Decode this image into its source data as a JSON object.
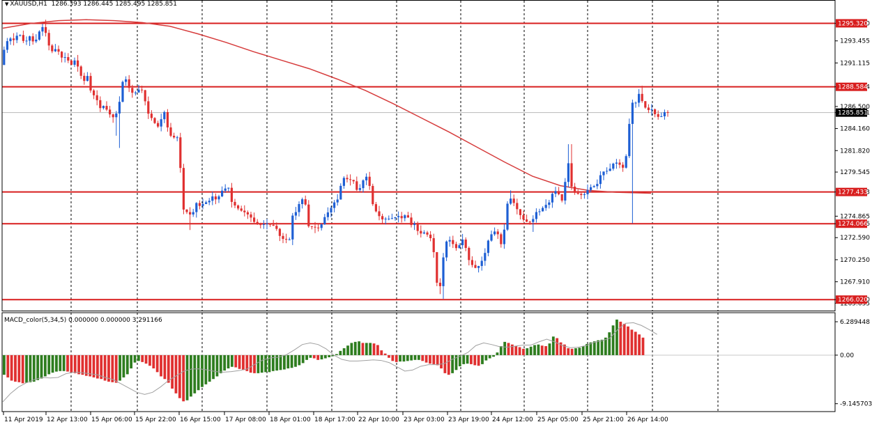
{
  "header": {
    "symbol": "XAUUSD,H1",
    "ohlc": "1286.393 1286.445 1285.495 1285.851"
  },
  "macd": {
    "label": "MACD_color(5,34,5) 0.000000 0.000000 3.291166"
  },
  "colors": {
    "up": "#1e5fd4",
    "down": "#e03030",
    "ma": "#d63c3c",
    "level": "#d81e1e",
    "hist_pos": "#2e7d1f",
    "hist_neg": "#e03030",
    "signal": "#a0a0a0",
    "grid": "#000000"
  },
  "chart_data": [
    {
      "type": "candlestick",
      "title": "XAUUSD,H1",
      "ylim": [
        1265.0,
        1297.2
      ],
      "y_ticks": [
        "1295.320",
        "1293.455",
        "1291.115",
        "1288.584",
        "1286.500",
        "1285.851",
        "1284.160",
        "1281.820",
        "1279.545",
        "1277.433",
        "1274.865",
        "1274.066",
        "1272.590",
        "1270.250",
        "1267.910",
        "1266.020",
        "1265.635"
      ],
      "x_ticks": [
        "11 Apr 2019",
        "12 Apr 13:00",
        "15 Apr 06:00",
        "15 Apr 22:00",
        "16 Apr 15:00",
        "17 Apr 08:00",
        "18 Apr 01:00",
        "18 Apr 17:00",
        "22 Apr 10:00",
        "23 Apr 03:00",
        "23 Apr 19:00",
        "24 Apr 12:00",
        "25 Apr 05:00",
        "25 Apr 21:00",
        "26 Apr 14:00"
      ],
      "horizontal_levels": [
        {
          "price": 1295.32,
          "label": "1295.320"
        },
        {
          "price": 1288.584,
          "label": "1288.584"
        },
        {
          "price": 1277.433,
          "label": "1277.433"
        },
        {
          "price": 1274.066,
          "label": "1274.066"
        },
        {
          "price": 1266.02,
          "label": "1266.020"
        }
      ],
      "current_price": {
        "price": 1285.851,
        "label": "1285.851"
      },
      "price_path": [
        [
          0,
          1290.9
        ],
        [
          6,
          1293.0
        ],
        [
          12,
          1293.8
        ],
        [
          18,
          1293.5
        ],
        [
          26,
          1294.3
        ],
        [
          34,
          1293.2
        ],
        [
          42,
          1294.0
        ],
        [
          48,
          1293.1
        ],
        [
          56,
          1294.6
        ],
        [
          62,
          1295.1
        ],
        [
          68,
          1293.1
        ],
        [
          74,
          1292.3
        ],
        [
          80,
          1292.7
        ],
        [
          88,
          1291.6
        ],
        [
          94,
          1291.8
        ],
        [
          100,
          1290.8
        ],
        [
          106,
          1291.4
        ],
        [
          112,
          1290.5
        ],
        [
          118,
          1289.0
        ],
        [
          124,
          1289.8
        ],
        [
          130,
          1287.8
        ],
        [
          136,
          1287.6
        ],
        [
          142,
          1286.3
        ],
        [
          148,
          1286.6
        ],
        [
          155,
          1285.8
        ],
        [
          160,
          1285.3
        ],
        [
          165,
          1285.6
        ],
        [
          170,
          1286.9
        ],
        [
          175,
          1289.2
        ],
        [
          180,
          1289.4
        ],
        [
          186,
          1288.0
        ],
        [
          192,
          1287.9
        ],
        [
          198,
          1288.3
        ],
        [
          204,
          1288.2
        ],
        [
          210,
          1285.9
        ],
        [
          216,
          1285.3
        ],
        [
          222,
          1284.6
        ],
        [
          228,
          1284.2
        ],
        [
          232,
          1286.1
        ],
        [
          236,
          1285.8
        ],
        [
          240,
          1283.9
        ],
        [
          246,
          1283.1
        ],
        [
          252,
          1283.4
        ],
        [
          256,
          1282.7
        ],
        [
          260,
          1275.9
        ],
        [
          264,
          1275.3
        ],
        [
          268,
          1275.3
        ],
        [
          272,
          1275.0
        ],
        [
          276,
          1275.3
        ],
        [
          280,
          1276.3
        ],
        [
          286,
          1275.9
        ],
        [
          292,
          1276.3
        ],
        [
          298,
          1276.4
        ],
        [
          304,
          1277.0
        ],
        [
          310,
          1276.5
        ],
        [
          316,
          1277.5
        ],
        [
          322,
          1277.8
        ],
        [
          328,
          1277.9
        ],
        [
          332,
          1276.0
        ],
        [
          336,
          1276.0
        ],
        [
          340,
          1275.7
        ],
        [
          346,
          1275.4
        ],
        [
          352,
          1275.2
        ],
        [
          358,
          1274.8
        ],
        [
          364,
          1274.2
        ],
        [
          370,
          1273.9
        ],
        [
          376,
          1274.0
        ],
        [
          382,
          1274.1
        ],
        [
          388,
          1273.9
        ],
        [
          394,
          1273.8
        ],
        [
          398,
          1273.1
        ],
        [
          402,
          1272.5
        ],
        [
          408,
          1272.4
        ],
        [
          414,
          1272.4
        ],
        [
          420,
          1275.7
        ],
        [
          424,
          1275.2
        ],
        [
          430,
          1276.7
        ],
        [
          436,
          1276.6
        ],
        [
          442,
          1273.6
        ],
        [
          448,
          1273.8
        ],
        [
          454,
          1273.5
        ],
        [
          460,
          1274.0
        ],
        [
          466,
          1275.0
        ],
        [
          472,
          1275.5
        ],
        [
          478,
          1276.3
        ],
        [
          484,
          1276.7
        ],
        [
          490,
          1279.0
        ],
        [
          496,
          1278.8
        ],
        [
          502,
          1278.7
        ],
        [
          508,
          1278.5
        ],
        [
          512,
          1277.2
        ],
        [
          516,
          1278.0
        ],
        [
          520,
          1278.7
        ],
        [
          524,
          1279.1
        ],
        [
          528,
          1278.6
        ],
        [
          532,
          1276.5
        ],
        [
          536,
          1275.6
        ],
        [
          540,
          1275.2
        ],
        [
          546,
          1274.5
        ],
        [
          552,
          1274.6
        ],
        [
          558,
          1274.6
        ],
        [
          564,
          1274.7
        ],
        [
          570,
          1274.9
        ],
        [
          576,
          1274.6
        ],
        [
          582,
          1275.2
        ],
        [
          588,
          1273.9
        ],
        [
          594,
          1274.1
        ],
        [
          600,
          1272.9
        ],
        [
          606,
          1273.2
        ],
        [
          612,
          1272.9
        ],
        [
          618,
          1272.4
        ],
        [
          622,
          1270.6
        ],
        [
          626,
          1267.5
        ],
        [
          630,
          1267.3
        ],
        [
          634,
          1270.2
        ],
        [
          640,
          1272.4
        ],
        [
          646,
          1272.3
        ],
        [
          652,
          1271.4
        ],
        [
          658,
          1271.8
        ],
        [
          664,
          1272.6
        ],
        [
          670,
          1270.4
        ],
        [
          676,
          1269.7
        ],
        [
          682,
          1269.3
        ],
        [
          688,
          1269.8
        ],
        [
          694,
          1270.8
        ],
        [
          700,
          1272.5
        ],
        [
          706,
          1273.2
        ],
        [
          712,
          1273.3
        ],
        [
          716,
          1271.9
        ],
        [
          720,
          1271.9
        ],
        [
          726,
          1276.1
        ],
        [
          732,
          1276.8
        ],
        [
          738,
          1276.0
        ],
        [
          744,
          1275.1
        ],
        [
          750,
          1274.5
        ],
        [
          756,
          1274.2
        ],
        [
          762,
          1274.3
        ],
        [
          768,
          1275.3
        ],
        [
          774,
          1275.4
        ],
        [
          780,
          1276.0
        ],
        [
          786,
          1276.2
        ],
        [
          792,
          1277.4
        ],
        [
          798,
          1277.6
        ],
        [
          804,
          1276.6
        ],
        [
          808,
          1276.3
        ],
        [
          812,
          1281.8
        ],
        [
          816,
          1279.4
        ],
        [
          820,
          1277.4
        ],
        [
          826,
          1277.3
        ],
        [
          832,
          1277.1
        ],
        [
          838,
          1277.2
        ],
        [
          844,
          1277.9
        ],
        [
          850,
          1278.0
        ],
        [
          856,
          1278.3
        ],
        [
          862,
          1279.6
        ],
        [
          868,
          1279.6
        ],
        [
          874,
          1279.9
        ],
        [
          880,
          1280.6
        ],
        [
          886,
          1280.5
        ],
        [
          892,
          1279.9
        ],
        [
          898,
          1281.5
        ],
        [
          902,
          1285.0
        ],
        [
          906,
          1286.9
        ],
        [
          912,
          1286.9
        ],
        [
          916,
          1288.0
        ],
        [
          922,
          1286.6
        ],
        [
          928,
          1286.1
        ],
        [
          934,
          1286.2
        ],
        [
          940,
          1285.5
        ],
        [
          946,
          1285.3
        ],
        [
          952,
          1285.9
        ],
        [
          956,
          1285.85
        ]
      ],
      "lows": [
        [
          160,
          1283.4
        ],
        [
          166,
          1282.1
        ],
        [
          268,
          1273.4
        ],
        [
          414,
          1271.8
        ],
        [
          626,
          1266.6
        ],
        [
          632,
          1266.1
        ],
        [
          680,
          1268.9
        ],
        [
          760,
          1273.2
        ],
        [
          900,
          1274.1
        ]
      ],
      "highs": [
        [
          62,
          1295.7
        ],
        [
          180,
          1289.7
        ],
        [
          328,
          1278.1
        ],
        [
          498,
          1279.3
        ],
        [
          526,
          1279.4
        ],
        [
          726,
          1277.6
        ],
        [
          812,
          1282.5
        ],
        [
          916,
          1288.7
        ]
      ],
      "moving_average": [
        [
          0,
          1294.8
        ],
        [
          40,
          1295.3
        ],
        [
          80,
          1295.6
        ],
        [
          120,
          1295.7
        ],
        [
          160,
          1295.6
        ],
        [
          200,
          1295.4
        ],
        [
          240,
          1295.0
        ],
        [
          280,
          1294.2
        ],
        [
          320,
          1293.3
        ],
        [
          360,
          1292.3
        ],
        [
          400,
          1291.4
        ],
        [
          440,
          1290.5
        ],
        [
          480,
          1289.4
        ],
        [
          520,
          1288.2
        ],
        [
          560,
          1286.8
        ],
        [
          600,
          1285.3
        ],
        [
          640,
          1283.8
        ],
        [
          680,
          1282.2
        ],
        [
          720,
          1280.6
        ],
        [
          760,
          1279.1
        ],
        [
          800,
          1278.1
        ],
        [
          840,
          1277.6
        ],
        [
          880,
          1277.4
        ],
        [
          930,
          1277.3
        ]
      ]
    },
    {
      "type": "histogram",
      "title": "MACD_color(5,34,5) 0.000000 0.000000 3.291166",
      "ylim": [
        -10.5,
        7.6
      ],
      "y_ticks": [
        "6.289448",
        "0.00",
        "-9.145703"
      ],
      "values": [
        -3.7,
        -4.2,
        -4.8,
        -5.0,
        -5.1,
        -5.3,
        -5.2,
        -5.1,
        -5.0,
        -4.7,
        -4.4,
        -4.0,
        -3.6,
        -3.3,
        -3.1,
        -3.0,
        -3.0,
        -3.1,
        -3.3,
        -3.4,
        -3.6,
        -3.7,
        -3.9,
        -4.0,
        -4.2,
        -4.4,
        -4.5,
        -4.8,
        -5.0,
        -5.1,
        -5.2,
        -4.8,
        -4.2,
        -3.6,
        -2.5,
        -1.4,
        -1.1,
        -1.3,
        -1.6,
        -2.0,
        -2.5,
        -3.2,
        -4.0,
        -4.5,
        -5.2,
        -6.3,
        -7.2,
        -8.1,
        -8.7,
        -8.5,
        -7.8,
        -7.2,
        -6.6,
        -6.0,
        -5.5,
        -5.0,
        -4.5,
        -4.0,
        -3.4,
        -2.9,
        -2.5,
        -2.2,
        -2.3,
        -2.6,
        -2.8,
        -3.0,
        -3.3,
        -3.4,
        -3.4,
        -3.3,
        -3.2,
        -3.2,
        -3.0,
        -2.9,
        -2.8,
        -2.7,
        -2.5,
        -2.4,
        -2.2,
        -1.9,
        -1.5,
        -0.9,
        -0.5,
        -0.6,
        -0.9,
        -0.8,
        -0.6,
        -0.4,
        -0.2,
        0.2,
        0.8,
        1.3,
        1.8,
        2.3,
        2.5,
        2.6,
        2.3,
        2.3,
        2.3,
        2.2,
        1.9,
        0.9,
        0.3,
        -0.5,
        -1.1,
        -1.3,
        -1.2,
        -1.2,
        -1.1,
        -1.0,
        -0.9,
        -0.9,
        -1.1,
        -1.4,
        -1.6,
        -1.7,
        -1.9,
        -2.5,
        -3.4,
        -3.7,
        -3.4,
        -2.8,
        -2.1,
        -1.7,
        -1.6,
        -1.7,
        -1.9,
        -2.0,
        -1.7,
        -1.0,
        -0.6,
        -0.3,
        0.5,
        1.7,
        2.5,
        2.3,
        2.0,
        1.7,
        1.5,
        1.2,
        1.3,
        1.6,
        1.9,
        2.0,
        1.8,
        1.7,
        2.2,
        3.5,
        3.2,
        2.4,
        2.0,
        1.3,
        1.2,
        1.3,
        1.4,
        1.7,
        2.1,
        2.4,
        2.6,
        2.8,
        2.9,
        3.3,
        4.3,
        5.6,
        6.7,
        6.3,
        5.9,
        5.4,
        4.8,
        4.4,
        3.9,
        3.3
      ],
      "signal": [
        -8.8,
        -7.2,
        -6.0,
        -5.2,
        -4.6,
        -4.2,
        -4.3,
        -4.2,
        -3.5,
        -3.2,
        -3.3,
        -3.5,
        -3.7,
        -4.2,
        -4.6,
        -5.4,
        -6.2,
        -7.0,
        -7.4,
        -7.0,
        -6.0,
        -4.8,
        -3.9,
        -3.0,
        -2.6,
        -2.6,
        -2.8,
        -3.1,
        -3.2,
        -3.1,
        -2.9,
        -2.6,
        -1.7,
        -0.9,
        -0.5,
        -0.4,
        0.1,
        1.0,
        2.0,
        2.3,
        2.0,
        1.2,
        0.0,
        -0.8,
        -1.1,
        -1.1,
        -1.0,
        -0.9,
        -1.0,
        -1.4,
        -2.2,
        -3.0,
        -2.8,
        -2.1,
        -1.8,
        -1.8,
        -1.6,
        -0.8,
        -0.2,
        0.5,
        1.8,
        2.3,
        2.0,
        1.6,
        1.5,
        1.7,
        1.9,
        1.9,
        2.5,
        3.0,
        2.5,
        1.8,
        1.4,
        1.5,
        1.8,
        2.4,
        2.7,
        3.2,
        4.8,
        6.0,
        6.1,
        5.6,
        4.8,
        3.9
      ]
    }
  ]
}
